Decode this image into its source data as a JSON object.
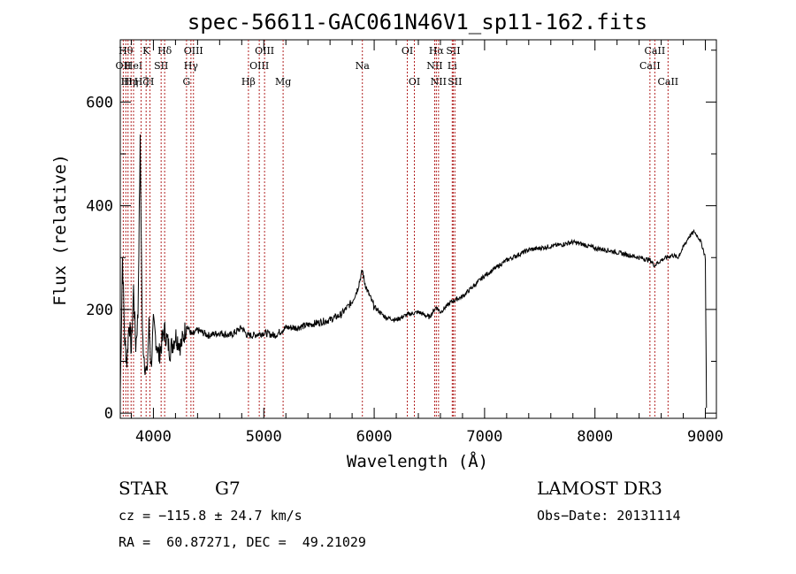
{
  "chart_data": {
    "type": "line",
    "title": "spec-56611-GAC061N46V1_sp11-162.fits",
    "xlabel": "Wavelength (Å)",
    "ylabel": "Flux (relative)",
    "xlim": [
      3700,
      9100
    ],
    "ylim": [
      -10,
      720
    ],
    "xticks": [
      "4000",
      "5000",
      "6000",
      "7000",
      "8000",
      "9000"
    ],
    "yticks": [
      "0",
      "200",
      "400",
      "600"
    ],
    "series": [
      {
        "name": "spectrum",
        "x": [
          3700,
          3720,
          3740,
          3760,
          3780,
          3800,
          3820,
          3840,
          3860,
          3880,
          3900,
          3920,
          3940,
          3960,
          3980,
          4000,
          4050,
          4100,
          4150,
          4200,
          4250,
          4300,
          4350,
          4400,
          4500,
          4600,
          4700,
          4800,
          4850,
          4900,
          5000,
          5100,
          5200,
          5300,
          5400,
          5500,
          5600,
          5700,
          5800,
          5850,
          5880,
          5895,
          5910,
          5940,
          6000,
          6100,
          6200,
          6300,
          6400,
          6500,
          6562,
          6600,
          6700,
          6800,
          6900,
          7000,
          7100,
          7200,
          7300,
          7400,
          7500,
          7600,
          7700,
          7800,
          7900,
          8000,
          8100,
          8200,
          8300,
          8400,
          8500,
          8540,
          8600,
          8650,
          8700,
          8750,
          8800,
          8850,
          8900,
          8950,
          8975,
          9000,
          9010
        ],
        "y": [
          40,
          300,
          140,
          100,
          180,
          120,
          240,
          130,
          190,
          520,
          150,
          100,
          70,
          170,
          90,
          170,
          110,
          160,
          120,
          150,
          130,
          170,
          150,
          160,
          150,
          155,
          150,
          165,
          150,
          150,
          155,
          150,
          165,
          165,
          170,
          175,
          180,
          190,
          215,
          240,
          265,
          275,
          255,
          235,
          205,
          185,
          180,
          190,
          195,
          185,
          205,
          195,
          215,
          225,
          245,
          265,
          280,
          295,
          305,
          315,
          318,
          322,
          325,
          330,
          325,
          318,
          315,
          310,
          305,
          300,
          295,
          285,
          295,
          300,
          305,
          300,
          320,
          340,
          350,
          335,
          320,
          300,
          10
        ]
      }
    ],
    "lines": [
      {
        "w": 3727,
        "label": "OII",
        "row": 2
      },
      {
        "w": 3750,
        "label": "Hθ",
        "row": 1
      },
      {
        "w": 3770,
        "label": "Hη",
        "row": 3
      },
      {
        "w": 3798,
        "label": "Hη",
        "row": 3
      },
      {
        "w": 3820,
        "label": "HeI",
        "row": 2
      },
      {
        "w": 3889,
        "label": "Hζ",
        "row": 3
      },
      {
        "w": 3934,
        "label": "K",
        "row": 1
      },
      {
        "w": 3969,
        "label": "H",
        "row": 3
      },
      {
        "w": 4070,
        "label": "SII",
        "row": 2
      },
      {
        "w": 4102,
        "label": "Hδ",
        "row": 1
      },
      {
        "w": 4300,
        "label": "G",
        "row": 3
      },
      {
        "w": 4340,
        "label": "Hγ",
        "row": 2
      },
      {
        "w": 4363,
        "label": "OIII",
        "row": 1
      },
      {
        "w": 4861,
        "label": "Hβ",
        "row": 3
      },
      {
        "w": 4959,
        "label": "OIII",
        "row": 2
      },
      {
        "w": 5007,
        "label": "OIII",
        "row": 1
      },
      {
        "w": 5175,
        "label": "Mg",
        "row": 3
      },
      {
        "w": 5893,
        "label": "Na",
        "row": 2
      },
      {
        "w": 6300,
        "label": "OI",
        "row": 1
      },
      {
        "w": 6364,
        "label": "OI",
        "row": 3
      },
      {
        "w": 6548,
        "label": "NII",
        "row": 2
      },
      {
        "w": 6563,
        "label": "Hα",
        "row": 1
      },
      {
        "w": 6583,
        "label": "NII",
        "row": 3
      },
      {
        "w": 6707,
        "label": "Li",
        "row": 2
      },
      {
        "w": 6716,
        "label": "SII",
        "row": 1
      },
      {
        "w": 6731,
        "label": "SII",
        "row": 3
      },
      {
        "w": 8498,
        "label": "CaII",
        "row": 2
      },
      {
        "w": 8542,
        "label": "CaII",
        "row": 1
      },
      {
        "w": 8662,
        "label": "CaII",
        "row": 3
      }
    ]
  },
  "info": {
    "class": "STAR",
    "subclass": "G7",
    "survey": "LAMOST DR3",
    "cz": "cz = −115.8 ± 24.7 km/s",
    "obs_date": "Obs−Date: 20131114",
    "coords": "RA =  60.87271, DEC =  49.21029"
  },
  "colors": {
    "line_marker": "#b22222",
    "spectrum": "#000000"
  }
}
